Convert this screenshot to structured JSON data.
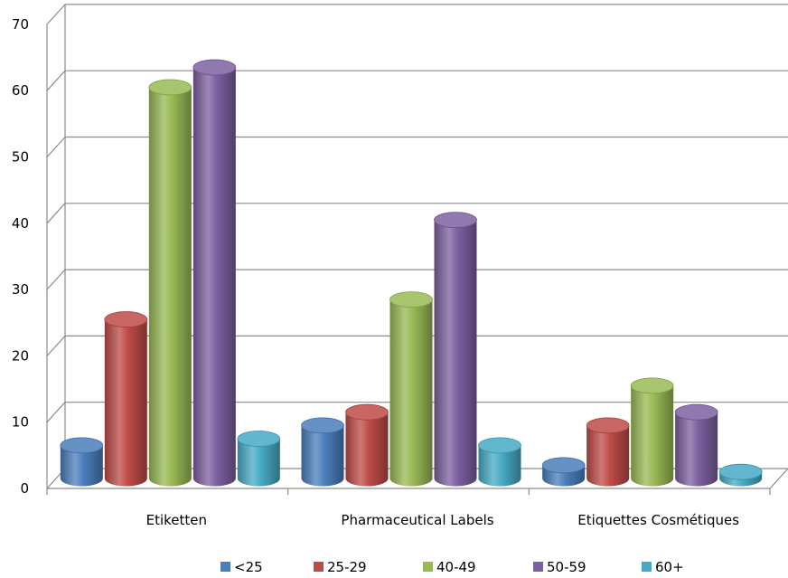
{
  "chart_data": {
    "type": "bar",
    "style": "3d-cylinder",
    "categories": [
      "Etiketten",
      "Pharmaceutical Labels",
      "Etiquettes Cosmétiques"
    ],
    "series": [
      {
        "name": "<25",
        "color": "#4a7ebb",
        "values": [
          5,
          8,
          2
        ]
      },
      {
        "name": "25-29",
        "color": "#be4b48",
        "values": [
          24,
          10,
          8
        ]
      },
      {
        "name": "40-49",
        "color": "#98b954",
        "values": [
          59,
          27,
          14
        ]
      },
      {
        "name": "50-59",
        "color": "#7d60a0",
        "values": [
          62,
          39,
          10
        ]
      },
      {
        "name": "60+",
        "color": "#46aac5",
        "values": [
          6,
          5,
          1
        ]
      }
    ],
    "ylim": [
      0,
      70
    ],
    "yticks": [
      0,
      10,
      20,
      30,
      40,
      50,
      60,
      70
    ],
    "grid": true,
    "legend": "bottom",
    "title": "",
    "xlabel": "",
    "ylabel": ""
  }
}
